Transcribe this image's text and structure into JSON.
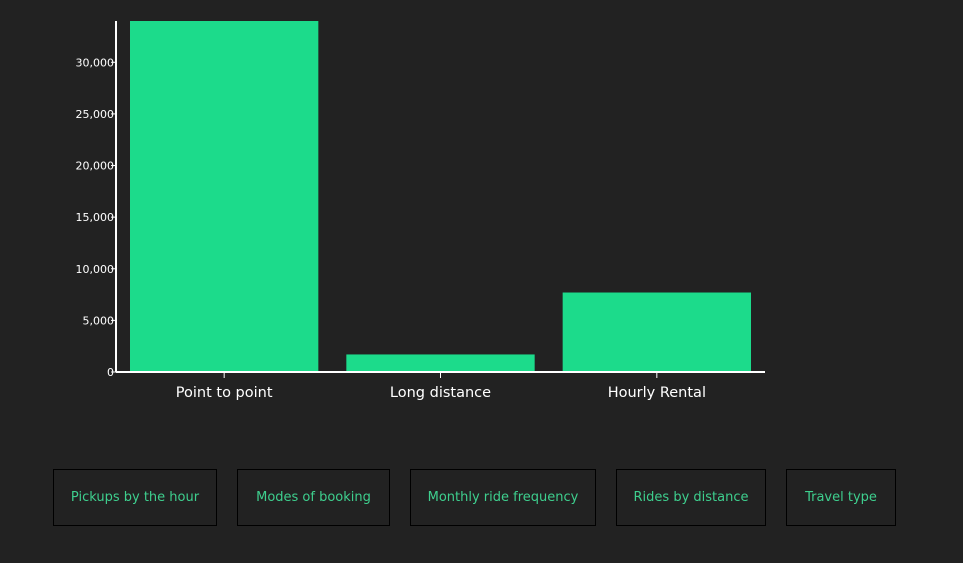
{
  "accent_color": "#1cdb8b",
  "chart_data": {
    "type": "bar",
    "categories": [
      "Point to point",
      "Long distance",
      "Hourly Rental"
    ],
    "values": [
      34000,
      1700,
      7700
    ],
    "ylim": [
      0,
      34000
    ],
    "yticks": [
      0,
      5000,
      10000,
      15000,
      20000,
      25000,
      30000
    ],
    "ytick_labels": [
      "0",
      "5,000",
      "10,000",
      "15,000",
      "20,000",
      "25,000",
      "30,000"
    ],
    "grid": false,
    "title": "",
    "xlabel": "",
    "ylabel": ""
  },
  "nav": {
    "buttons": [
      {
        "label": "Pickups by the hour"
      },
      {
        "label": "Modes of booking"
      },
      {
        "label": "Monthly ride frequency"
      },
      {
        "label": "Rides by distance"
      },
      {
        "label": "Travel type"
      }
    ]
  }
}
